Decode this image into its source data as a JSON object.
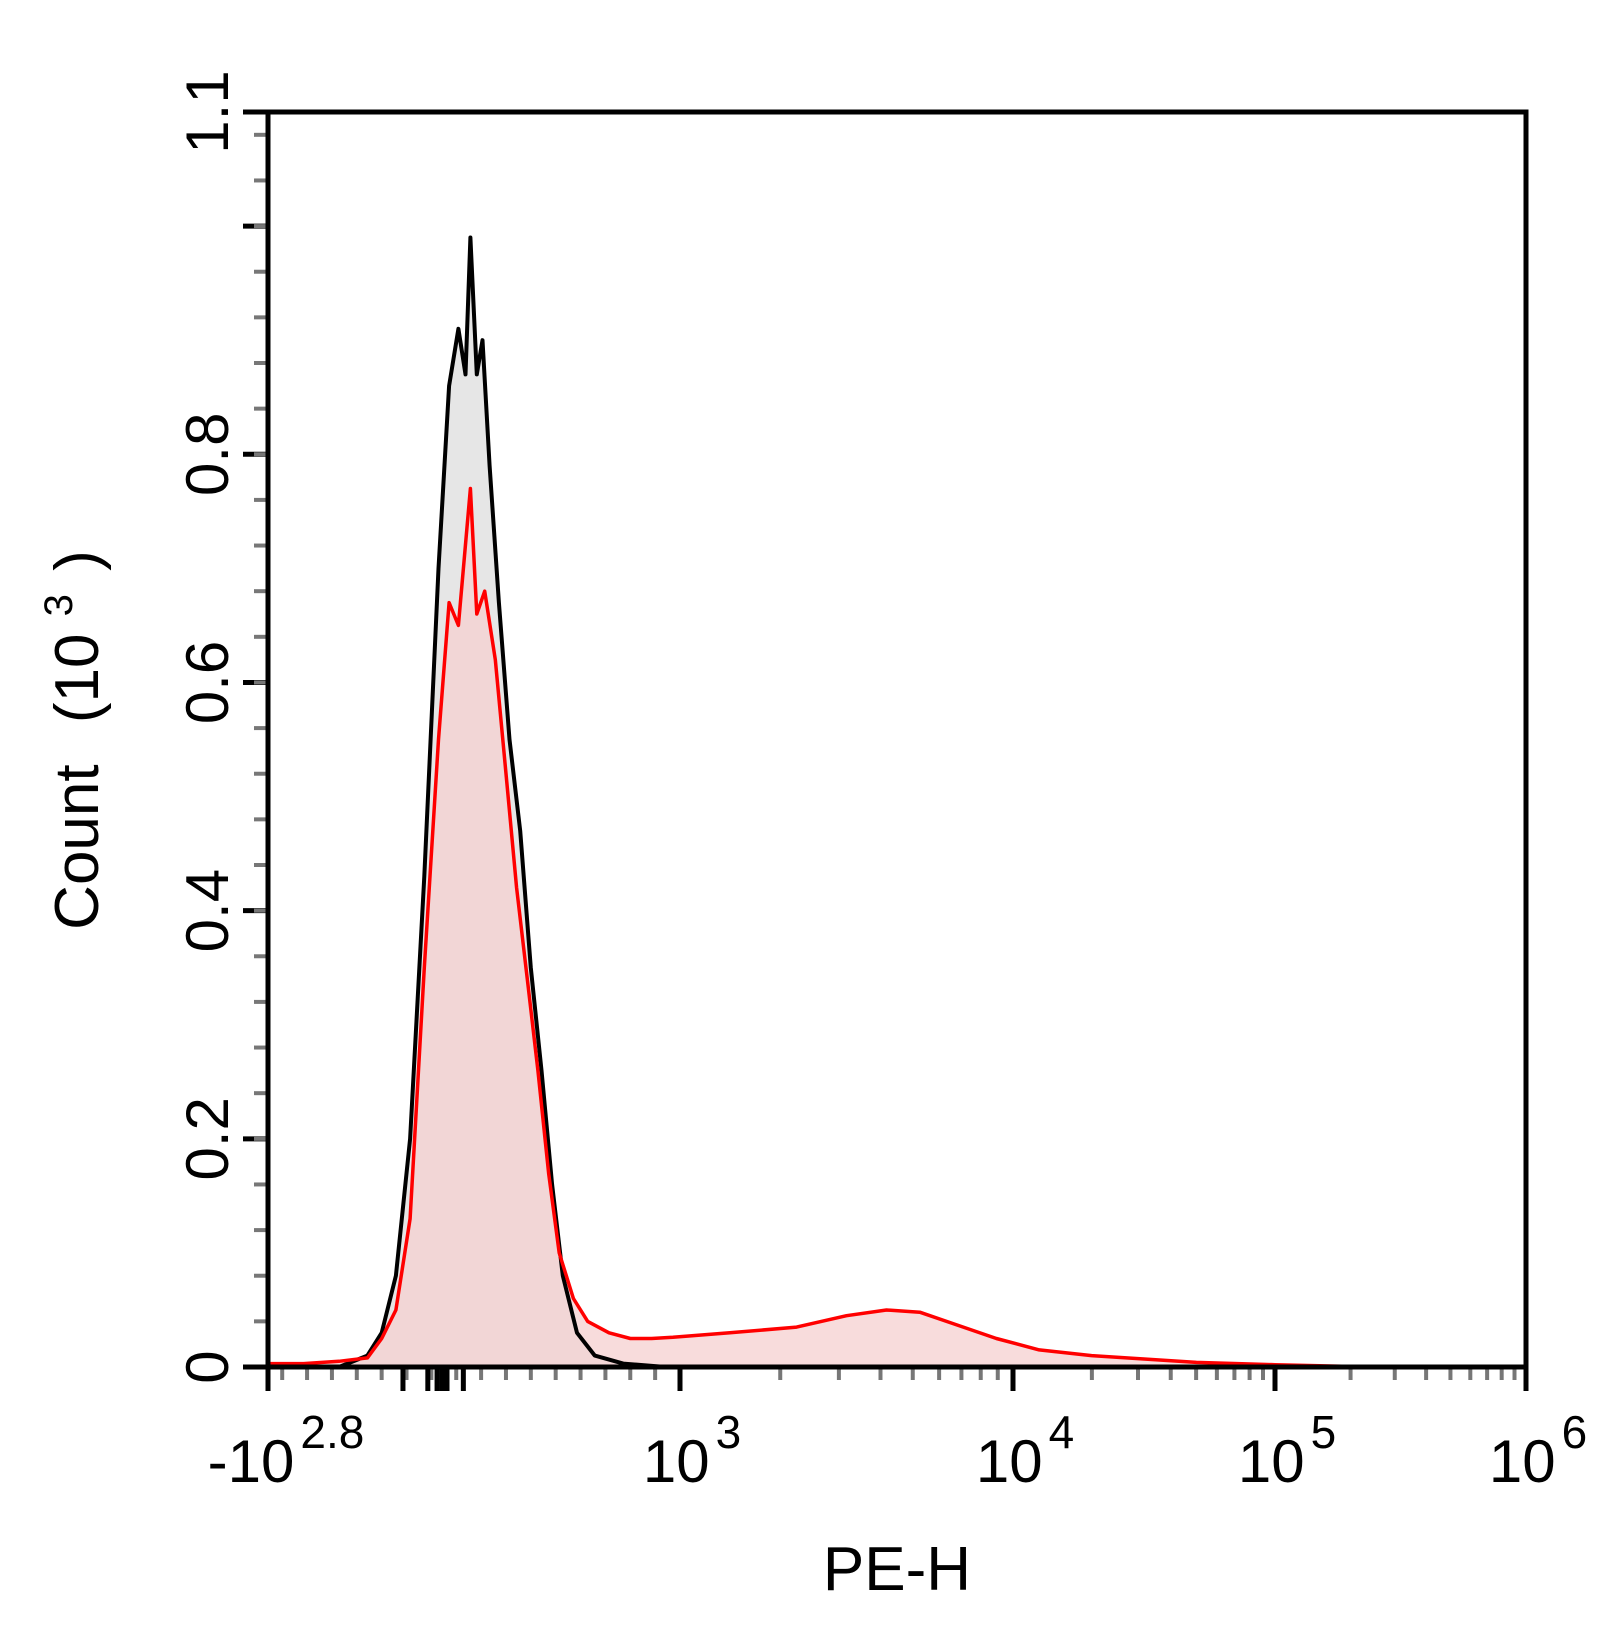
{
  "chart_data": {
    "type": "area",
    "title": "",
    "xlabel": "PE-H",
    "ylabel": "Count",
    "ylabel_unit": "(10",
    "ylabel_exp": "3",
    "ylabel_close": ")",
    "x_scale": "biexponential",
    "xlim_decades": [
      -2.8,
      6
    ],
    "ylim": [
      0,
      1.1
    ],
    "grid": false,
    "legend": "none",
    "x_ticks": [
      {
        "base": "-10",
        "exp": "2.8",
        "pos": -2.8
      },
      {
        "base": "10",
        "exp": "3",
        "pos": 3
      },
      {
        "base": "10",
        "exp": "4",
        "pos": 4
      },
      {
        "base": "10",
        "exp": "5",
        "pos": 5
      },
      {
        "base": "10",
        "exp": "6",
        "pos": 6
      }
    ],
    "y_ticks": [
      {
        "label": "0",
        "value": 0
      },
      {
        "label": "0.2",
        "value": 0.2
      },
      {
        "label": "0.4",
        "value": 0.4
      },
      {
        "label": "0.6",
        "value": 0.6
      },
      {
        "label": "0.8",
        "value": 0.8
      },
      {
        "label": "1.1",
        "value": 1.1
      }
    ],
    "series": [
      {
        "color": "#000000",
        "fill": "#e6e6e6",
        "points": [
          [
            -2.8,
            0
          ],
          [
            -1.8,
            0
          ],
          [
            -1.4,
            0.01
          ],
          [
            -1.2,
            0.03
          ],
          [
            -1.0,
            0.08
          ],
          [
            -0.8,
            0.2
          ],
          [
            -0.6,
            0.43
          ],
          [
            -0.4,
            0.7
          ],
          [
            -0.25,
            0.86
          ],
          [
            -0.12,
            0.91
          ],
          [
            -0.02,
            0.87
          ],
          [
            0.05,
            0.99
          ],
          [
            0.14,
            0.87
          ],
          [
            0.22,
            0.9
          ],
          [
            0.32,
            0.79
          ],
          [
            0.45,
            0.67
          ],
          [
            0.6,
            0.55
          ],
          [
            0.75,
            0.47
          ],
          [
            0.9,
            0.35
          ],
          [
            1.05,
            0.26
          ],
          [
            1.2,
            0.16
          ],
          [
            1.35,
            0.08
          ],
          [
            1.55,
            0.03
          ],
          [
            1.8,
            0.01
          ],
          [
            2.2,
            0.003
          ],
          [
            2.8,
            0
          ],
          [
            6,
            0
          ]
        ]
      },
      {
        "color": "#ff0000",
        "fill": "#f5d0d0",
        "points": [
          [
            -2.8,
            0.003
          ],
          [
            -2.3,
            0.003
          ],
          [
            -1.8,
            0.005
          ],
          [
            -1.4,
            0.008
          ],
          [
            -1.2,
            0.025
          ],
          [
            -1.0,
            0.05
          ],
          [
            -0.8,
            0.13
          ],
          [
            -0.6,
            0.35
          ],
          [
            -0.4,
            0.55
          ],
          [
            -0.25,
            0.67
          ],
          [
            -0.12,
            0.65
          ],
          [
            0.05,
            0.77
          ],
          [
            0.14,
            0.66
          ],
          [
            0.25,
            0.68
          ],
          [
            0.4,
            0.62
          ],
          [
            0.55,
            0.52
          ],
          [
            0.7,
            0.42
          ],
          [
            0.85,
            0.34
          ],
          [
            1.0,
            0.26
          ],
          [
            1.15,
            0.17
          ],
          [
            1.3,
            0.1
          ],
          [
            1.5,
            0.06
          ],
          [
            1.7,
            0.04
          ],
          [
            2.0,
            0.03
          ],
          [
            2.3,
            0.025
          ],
          [
            2.6,
            0.025
          ],
          [
            2.9,
            0.026
          ],
          [
            3.15,
            0.03
          ],
          [
            3.35,
            0.035
          ],
          [
            3.5,
            0.045
          ],
          [
            3.62,
            0.05
          ],
          [
            3.72,
            0.048
          ],
          [
            3.82,
            0.038
          ],
          [
            3.95,
            0.025
          ],
          [
            4.1,
            0.015
          ],
          [
            4.3,
            0.01
          ],
          [
            4.5,
            0.007
          ],
          [
            4.7,
            0.004
          ],
          [
            5.0,
            0.002
          ],
          [
            5.4,
            0
          ],
          [
            6,
            0
          ]
        ]
      }
    ]
  }
}
